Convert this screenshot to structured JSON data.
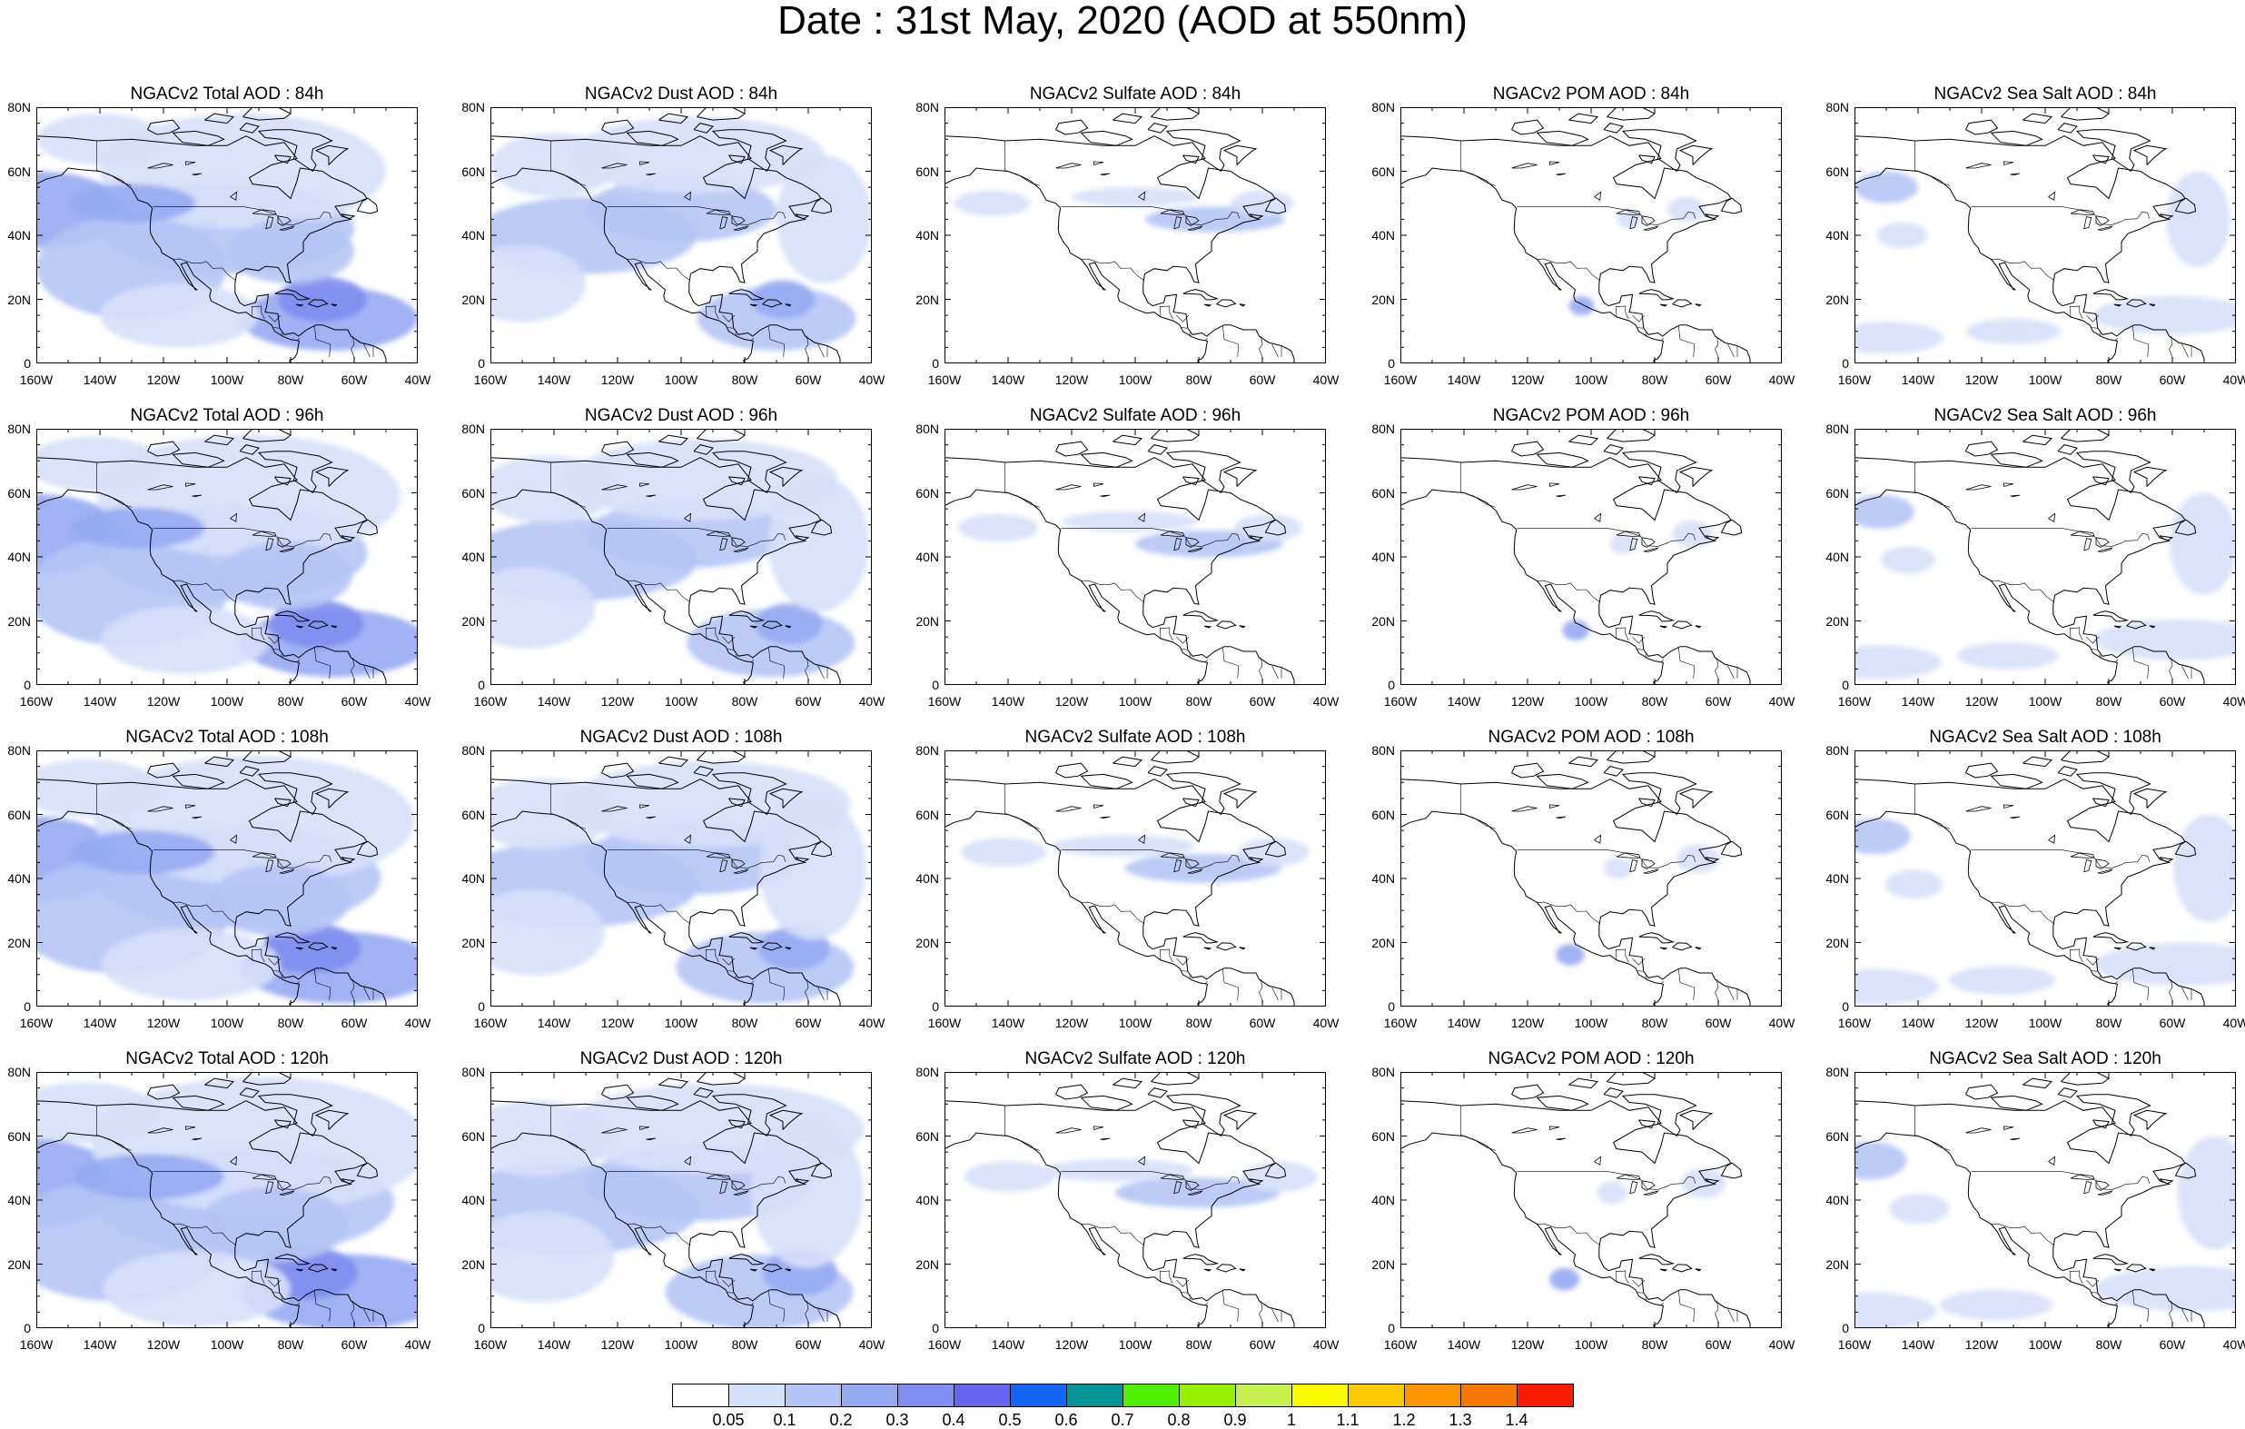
{
  "title": "Date : 31st May, 2020 (AOD at 550nm)",
  "axes": {
    "lat_labels": [
      "80N",
      "60N",
      "40N",
      "20N",
      "0"
    ],
    "lon_labels": [
      "160W",
      "140W",
      "120W",
      "100W",
      "80W",
      "60W",
      "40W"
    ]
  },
  "panels": [
    {
      "title": "NGACv2 Total AOD : 84h",
      "species": "total",
      "hour": 84
    },
    {
      "title": "NGACv2 Dust AOD : 84h",
      "species": "dust",
      "hour": 84
    },
    {
      "title": "NGACv2 Sulfate AOD : 84h",
      "species": "sulfate",
      "hour": 84
    },
    {
      "title": "NGACv2 POM AOD : 84h",
      "species": "pom",
      "hour": 84
    },
    {
      "title": "NGACv2 Sea Salt AOD : 84h",
      "species": "seasalt",
      "hour": 84
    },
    {
      "title": "NGACv2 Total AOD : 96h",
      "species": "total",
      "hour": 96
    },
    {
      "title": "NGACv2 Dust AOD : 96h",
      "species": "dust",
      "hour": 96
    },
    {
      "title": "NGACv2 Sulfate AOD : 96h",
      "species": "sulfate",
      "hour": 96
    },
    {
      "title": "NGACv2 POM AOD : 96h",
      "species": "pom",
      "hour": 96
    },
    {
      "title": "NGACv2 Sea Salt AOD : 96h",
      "species": "seasalt",
      "hour": 96
    },
    {
      "title": "NGACv2 Total AOD : 108h",
      "species": "total",
      "hour": 108
    },
    {
      "title": "NGACv2 Dust AOD : 108h",
      "species": "dust",
      "hour": 108
    },
    {
      "title": "NGACv2 Sulfate AOD : 108h",
      "species": "sulfate",
      "hour": 108
    },
    {
      "title": "NGACv2 POM AOD : 108h",
      "species": "pom",
      "hour": 108
    },
    {
      "title": "NGACv2 Sea Salt AOD : 108h",
      "species": "seasalt",
      "hour": 108
    },
    {
      "title": "NGACv2 Total AOD : 120h",
      "species": "total",
      "hour": 120
    },
    {
      "title": "NGACv2 Dust AOD : 120h",
      "species": "dust",
      "hour": 120
    },
    {
      "title": "NGACv2 Sulfate AOD : 120h",
      "species": "sulfate",
      "hour": 120
    },
    {
      "title": "NGACv2 POM AOD : 120h",
      "species": "pom",
      "hour": 120
    },
    {
      "title": "NGACv2 Sea Salt  AOD : 120h",
      "species": "seasalt",
      "hour": 120
    }
  ],
  "colorbar": {
    "colors": [
      "#ffffff",
      "#d6e0fa",
      "#b4c5f5",
      "#96aaf2",
      "#7f8ef0",
      "#6464ee",
      "#1464f5",
      "#009696",
      "#50f000",
      "#96f000",
      "#c8f050",
      "#fafa00",
      "#fac800",
      "#fa9600",
      "#f57800",
      "#fa1e00"
    ],
    "labels": [
      "0.05",
      "0.1",
      "0.2",
      "0.3",
      "0.4",
      "0.5",
      "0.6",
      "0.7",
      "0.8",
      "0.9",
      "1",
      "1.1",
      "1.2",
      "1.3",
      "1.4"
    ]
  }
}
